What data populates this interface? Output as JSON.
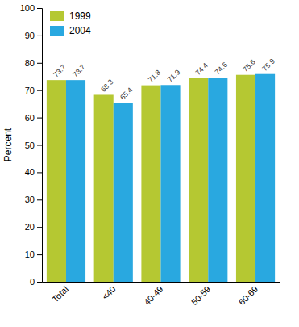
{
  "chart_data": {
    "type": "bar",
    "categories": [
      "Total",
      "<40",
      "40-49",
      "50-59",
      "60-69"
    ],
    "series": [
      {
        "name": "1999",
        "color": "#b5c832",
        "values": [
          73.7,
          68.3,
          71.8,
          74.4,
          75.6
        ]
      },
      {
        "name": "2004",
        "color": "#29a8e0",
        "values": [
          73.7,
          65.4,
          71.9,
          74.6,
          75.9
        ]
      }
    ],
    "ylabel": "Percent",
    "ylim": [
      0,
      100
    ],
    "yticks": [
      0,
      10,
      20,
      30,
      40,
      50,
      60,
      70,
      80,
      90,
      100
    ],
    "grid": false,
    "legend": "upper left",
    "data_labels": true
  }
}
